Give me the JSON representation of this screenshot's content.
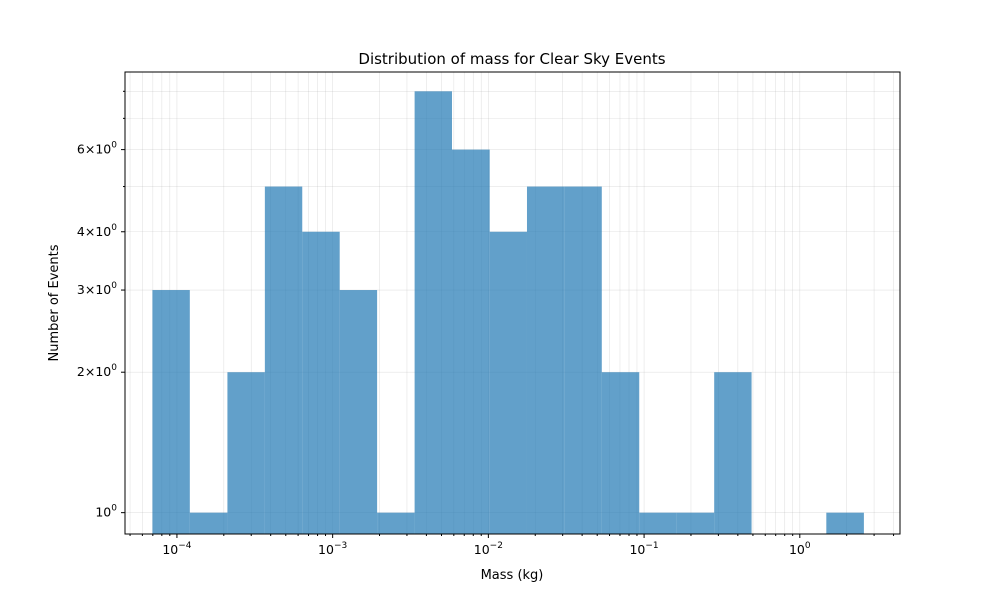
{
  "chart_data": {
    "type": "bar",
    "title": "Distribution of mass for Clear Sky Events",
    "xlabel": "Mass (kg)",
    "ylabel": "Number of Events",
    "x_scale": "log",
    "y_scale": "log",
    "xlim": [
      4.64e-05,
      4.4
    ],
    "ylim": [
      0.9,
      8.8
    ],
    "grid": true,
    "bin_edges": [
      6.96e-05,
      0.000121,
      0.000211,
      0.000367,
      0.000638,
      0.00111,
      0.00193,
      0.00336,
      0.00584,
      0.0102,
      0.0177,
      0.0307,
      0.0535,
      0.0931,
      0.162,
      0.282,
      0.49,
      0.853,
      1.48,
      2.58
    ],
    "counts": [
      3,
      1,
      2,
      5,
      4,
      3,
      1,
      8,
      6,
      4,
      5,
      5,
      2,
      1,
      1,
      2,
      0,
      0,
      1
    ],
    "x_major_ticks": [
      {
        "value": 0.0001,
        "base": "10",
        "exp": "−4"
      },
      {
        "value": 0.001,
        "base": "10",
        "exp": "−3"
      },
      {
        "value": 0.01,
        "base": "10",
        "exp": "−2"
      },
      {
        "value": 0.1,
        "base": "10",
        "exp": "−1"
      },
      {
        "value": 1,
        "base": "10",
        "exp": "0"
      }
    ],
    "y_ticks": [
      {
        "value": 1,
        "mant": "",
        "base": "10",
        "exp": "0"
      },
      {
        "value": 2,
        "mant": "2×",
        "base": "10",
        "exp": "0"
      },
      {
        "value": 3,
        "mant": "3×",
        "base": "10",
        "exp": "0"
      },
      {
        "value": 4,
        "mant": "4×",
        "base": "10",
        "exp": "0"
      },
      {
        "value": 6,
        "mant": "6×",
        "base": "10",
        "exp": "0"
      }
    ],
    "y_minor_unlabeled": [
      5,
      7,
      8
    ],
    "bar_color": "#1f77b4"
  }
}
